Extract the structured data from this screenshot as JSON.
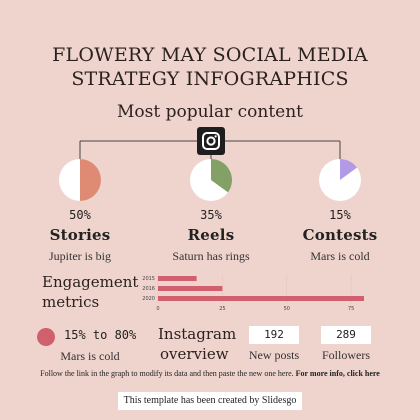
{
  "title": {
    "line1": "FLOWERY MAY SOCIAL MEDIA",
    "line2": "STRATEGY INFOGRAPHICS"
  },
  "popular": {
    "heading": "Most popular content",
    "icon": "instagram-icon",
    "items": [
      {
        "percent": "50%",
        "value": 50,
        "title": "Stories",
        "subtitle": "Jupiter is big",
        "color": "#df8a72"
      },
      {
        "percent": "35%",
        "value": 35,
        "title": "Reels",
        "subtitle": "Saturn has rings",
        "color": "#83a067"
      },
      {
        "percent": "15%",
        "value": 15,
        "title": "Contests",
        "subtitle": "Mars is cold",
        "color": "#b39ae6"
      }
    ]
  },
  "engagement": {
    "heading_line1": "Engagement",
    "heading_line2": "metrics"
  },
  "chart_data": {
    "type": "bar",
    "orientation": "horizontal",
    "categories": [
      "2015",
      "2016",
      "2020"
    ],
    "values": [
      15,
      25,
      80
    ],
    "xlim": [
      0,
      80
    ],
    "xticks": [
      "0",
      "25",
      "50",
      "75"
    ],
    "color": "#d1606f"
  },
  "range_stat": {
    "text": "15% to 80%",
    "subtitle": "Mars is cold",
    "color": "#d1606f"
  },
  "instagram_overview": {
    "line1": "Instagram",
    "line2": "overview"
  },
  "stats": [
    {
      "value": "192",
      "label": "New posts"
    },
    {
      "value": "289",
      "label": "Followers"
    }
  ],
  "footer": {
    "note": "Follow the link in the graph to modify its data and then paste the new one here.",
    "note_bold": "For more info, click here",
    "credit": "This template has been created by Slidesgo"
  }
}
